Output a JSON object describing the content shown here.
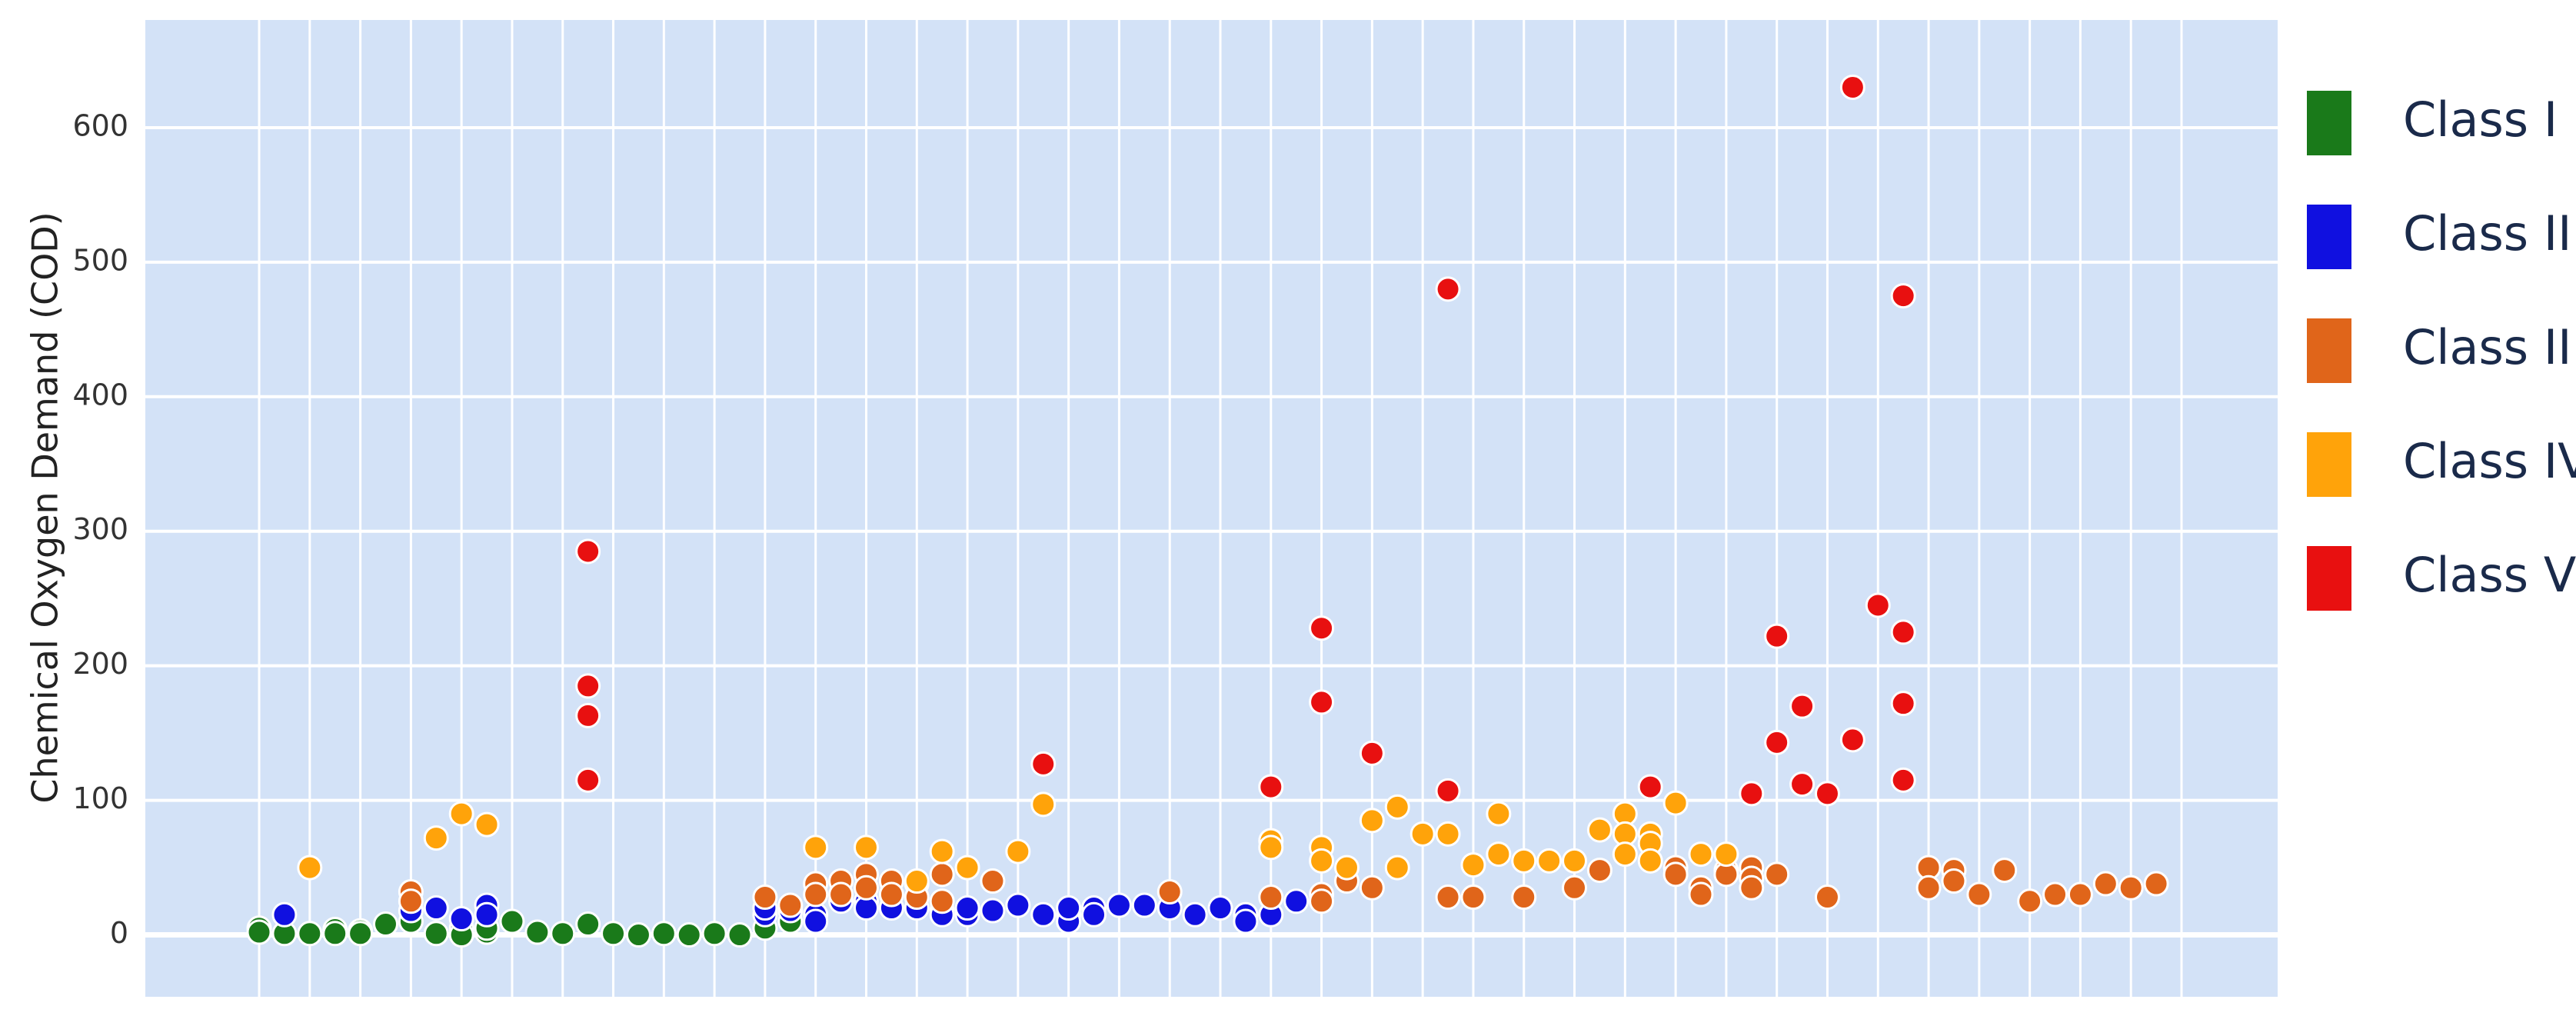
{
  "chart_data": {
    "type": "scatter",
    "y_label": "Chemical Oxygen Demand (COD)",
    "xlim": [
      -4.5,
      79.8
    ],
    "xticks": [
      0,
      2,
      4,
      6,
      8,
      10,
      12,
      14,
      16,
      18,
      20,
      22,
      24,
      26,
      28,
      30,
      32,
      34,
      36,
      38,
      40,
      42,
      44,
      46,
      48,
      50,
      52,
      54,
      56,
      58,
      60,
      62,
      64,
      66,
      68,
      70,
      72,
      74,
      76
    ],
    "ylim": [
      -46,
      680
    ],
    "yticks": [
      0,
      100,
      200,
      300,
      400,
      500,
      600
    ],
    "grid": true,
    "legend": "right",
    "series": [
      {
        "name": "Class I",
        "color": "#1a7a1a",
        "x": [
          0,
          0,
          1,
          2,
          3,
          3,
          4,
          4,
          5,
          6,
          7,
          8,
          8,
          9,
          9,
          10,
          11,
          12,
          13,
          14,
          15,
          16,
          17,
          18,
          19,
          20,
          21
        ],
        "y": [
          5,
          2,
          1,
          1,
          4,
          1,
          3,
          1,
          8,
          10,
          1,
          5,
          0,
          2,
          5,
          10,
          2,
          1,
          8,
          1,
          0,
          1,
          0,
          1,
          0,
          5,
          10
        ]
      },
      {
        "name": "Class II",
        "color": "#1010e0",
        "x": [
          1,
          6,
          7,
          8,
          9,
          9,
          20,
          20,
          21,
          22,
          22,
          23,
          24,
          24,
          25,
          26,
          27,
          27,
          28,
          28,
          29,
          30,
          31,
          32,
          32,
          32,
          33,
          33,
          34,
          35,
          36,
          37,
          38,
          39,
          39,
          40,
          41
        ],
        "y": [
          15,
          18,
          20,
          12,
          22,
          15,
          15,
          20,
          18,
          15,
          10,
          25,
          25,
          20,
          20,
          20,
          18,
          15,
          15,
          20,
          18,
          22,
          15,
          15,
          10,
          20,
          20,
          15,
          22,
          22,
          20,
          15,
          20,
          15,
          10,
          15,
          25
        ]
      },
      {
        "name": "Class III",
        "color": "#e0651a",
        "x": [
          6,
          6,
          20,
          21,
          22,
          22,
          23,
          23,
          24,
          24,
          25,
          25,
          26,
          26,
          27,
          27,
          29,
          36,
          40,
          42,
          42,
          43,
          44,
          47,
          48,
          50,
          52,
          53,
          56,
          56,
          57,
          57,
          58,
          58,
          59,
          59,
          59,
          60,
          62,
          66,
          66,
          67,
          67,
          68,
          69,
          70,
          71,
          72,
          73,
          74,
          75
        ],
        "y": [
          32,
          25,
          28,
          22,
          38,
          30,
          40,
          30,
          45,
          35,
          40,
          30,
          38,
          28,
          45,
          25,
          40,
          32,
          28,
          30,
          25,
          40,
          35,
          28,
          28,
          28,
          35,
          48,
          50,
          45,
          35,
          30,
          48,
          45,
          50,
          42,
          35,
          45,
          28,
          50,
          35,
          48,
          40,
          30,
          48,
          25,
          30,
          30,
          38,
          35,
          38
        ]
      },
      {
        "name": "Class IV",
        "color": "#ffa30a",
        "x": [
          2,
          7,
          8,
          9,
          22,
          24,
          26,
          27,
          28,
          30,
          31,
          40,
          40,
          42,
          42,
          43,
          44,
          45,
          45,
          46,
          47,
          48,
          49,
          49,
          50,
          51,
          52,
          53,
          54,
          54,
          54,
          55,
          55,
          55,
          56,
          57,
          58
        ],
        "y": [
          50,
          72,
          90,
          82,
          65,
          65,
          40,
          62,
          50,
          62,
          97,
          70,
          65,
          65,
          55,
          50,
          85,
          95,
          50,
          75,
          75,
          52,
          90,
          60,
          55,
          55,
          55,
          78,
          90,
          75,
          60,
          75,
          68,
          55,
          98,
          60,
          60
        ]
      },
      {
        "name": "Class V",
        "color": "#e81010",
        "x": [
          13,
          13,
          13,
          13,
          31,
          40,
          42,
          42,
          44,
          47,
          47,
          55,
          59,
          60,
          60,
          61,
          61,
          62,
          63,
          63,
          64,
          65,
          65,
          65,
          65
        ],
        "y": [
          285,
          185,
          163,
          115,
          127,
          110,
          228,
          173,
          135,
          480,
          107,
          110,
          105,
          222,
          143,
          170,
          112,
          105,
          630,
          145,
          245,
          475,
          225,
          172,
          115
        ]
      }
    ]
  }
}
